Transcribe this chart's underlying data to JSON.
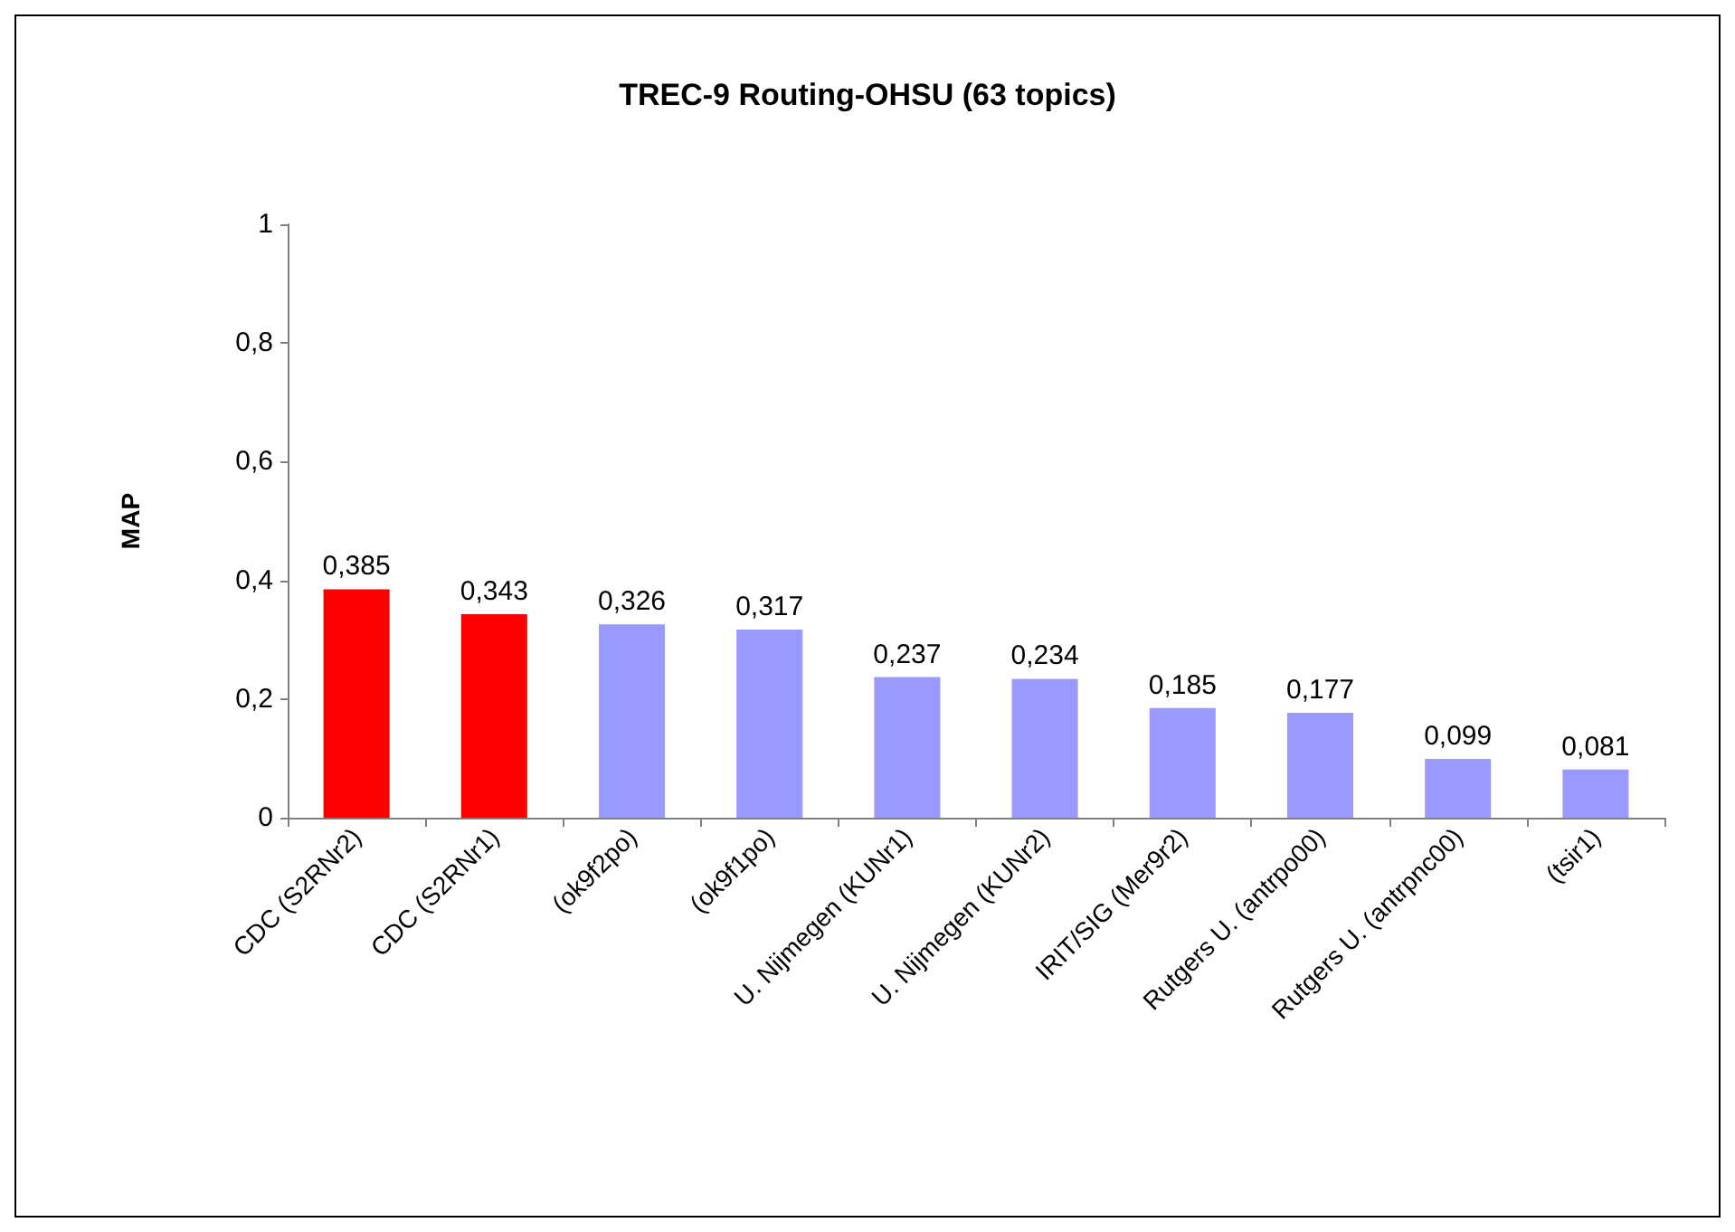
{
  "chart_data": {
    "type": "bar",
    "title": "TREC-9 Routing-OHSU (63 topics)",
    "ylabel": "MAP",
    "categories": [
      "CDC (S2RNr2)",
      "CDC (S2RNr1)",
      "(ok9f2po)",
      "(ok9f1po)",
      "U. Nijmegen (KUNr1)",
      "U. Nijmegen (KUNr2)",
      "IRIT/SIG (Mer9r2)",
      "Rutgers U. (antrpo00)",
      "Rutgers U. (antrpnc00)",
      "(tsir1)"
    ],
    "values": [
      0.385,
      0.343,
      0.326,
      0.317,
      0.237,
      0.234,
      0.185,
      0.177,
      0.099,
      0.081
    ],
    "value_labels": [
      "0,385",
      "0,343",
      "0,326",
      "0,317",
      "0,237",
      "0,234",
      "0,185",
      "0,177",
      "0,099",
      "0,081"
    ],
    "colors": [
      "#ff0000",
      "#ff0000",
      "#9999ff",
      "#9999ff",
      "#9999ff",
      "#9999ff",
      "#9999ff",
      "#9999ff",
      "#9999ff",
      "#9999ff"
    ],
    "ylim": [
      0,
      1
    ],
    "yticks": [
      0,
      {
        "value": 0.2,
        "label": "0,2"
      },
      {
        "value": 0.4,
        "label": "0,4"
      },
      {
        "value": 0.6,
        "label": "0,6"
      },
      {
        "value": 0.8,
        "label": "0,8"
      },
      1
    ],
    "grid": false
  }
}
